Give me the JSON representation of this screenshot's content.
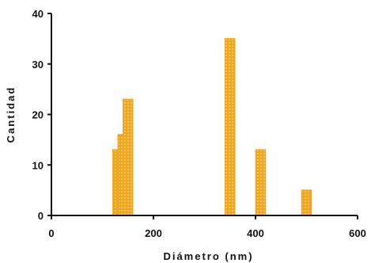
{
  "chart_data": {
    "type": "bar",
    "title": "",
    "xlabel": "Diámetro (nm)",
    "ylabel": "Cantidad",
    "xlim": [
      0,
      600
    ],
    "ylim": [
      0,
      40
    ],
    "x_ticks": [
      0,
      200,
      400,
      600
    ],
    "y_ticks": [
      0,
      10,
      20,
      30,
      40
    ],
    "grid": false,
    "bar_color": "#f2a516",
    "bar_hatch_color": "#fbe3b0",
    "axis_color": "#111111",
    "series": [
      {
        "x": [
          130,
          140,
          150,
          350,
          410,
          500
        ],
        "values": [
          13,
          16,
          23,
          35,
          13,
          5
        ]
      }
    ]
  }
}
